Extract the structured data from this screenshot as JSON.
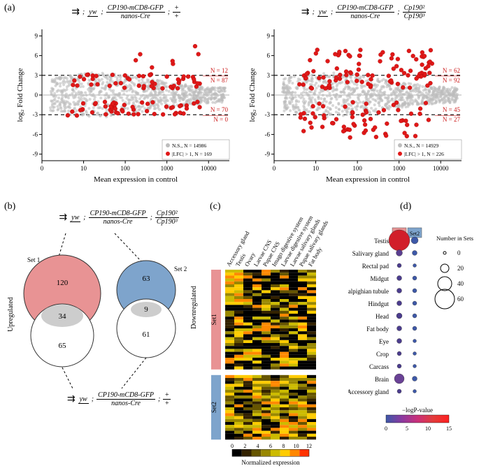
{
  "panel_a": {
    "label": "(a)",
    "left": {
      "genotype": {
        "l1": "yw",
        "l2": "",
        "m1": "CP190-mCD8-GFP",
        "m2": "nanos-Cre",
        "r1": "+",
        "r2": "+"
      },
      "xlabel": "Mean expression in control",
      "ylabel": "log₂ Fold Change",
      "xticks": [
        "0",
        "10",
        "100",
        "1000",
        "10000"
      ],
      "yticks": [
        "-9",
        "-6",
        "-3",
        "0",
        "3",
        "6",
        "9"
      ],
      "ylim": [
        -10,
        10
      ],
      "dash_lines": [
        3,
        -3
      ],
      "counts": {
        "top_above": "N = 12",
        "top_below": "N = 87",
        "bot_above": "N = 70",
        "bot_below": "N = 0"
      },
      "legend": {
        "ns": "N.S., N = 14986",
        "sig": "|LFC| > 1, N = 169"
      },
      "colors": {
        "ns": "#bdbdbd",
        "sig": "#e01818",
        "text_red": "#cc1a1a",
        "axis": "#000"
      }
    },
    "right": {
      "genotype": {
        "l1": "yw",
        "l2": "",
        "m1": "CP190-mCD8-GFP",
        "m2": "nanos-Cre",
        "r1": "Cp190²",
        "r2": "Cp190³"
      },
      "xlabel": "Mean expression in control",
      "ylabel": "log₂ Fold Change",
      "xticks": [
        "0",
        "10",
        "100",
        "1000",
        "10000"
      ],
      "yticks": [
        "-9",
        "-6",
        "-3",
        "0",
        "3",
        "6",
        "9"
      ],
      "ylim": [
        -10,
        10
      ],
      "dash_lines": [
        3,
        -3
      ],
      "counts": {
        "top_above": "N = 62",
        "top_below": "N = 92",
        "bot_above": "N = 45",
        "bot_below": "N = 27"
      },
      "legend": {
        "ns": "N.S., N = 14929",
        "sig": "|LFC| > 1, N = 226"
      },
      "colors": {
        "ns": "#bdbdbd",
        "sig": "#e01818",
        "text_red": "#cc1a1a",
        "axis": "#000"
      }
    }
  },
  "panel_b": {
    "label": "(b)",
    "top_geno": {
      "l1": "yw",
      "m1": "CP190-mCD8-GFP",
      "m2": "nanos-Cre",
      "r1": "Cp190²",
      "r2": "Cp190³"
    },
    "bot_geno": {
      "l1": "yw",
      "m1": "CP190-mCD8-GFP",
      "m2": "nanos-Cre",
      "r1": "+",
      "r2": "+"
    },
    "left_label": "Upregulated",
    "right_label": "Downregulated",
    "set1_label": "Set 1",
    "set2_label": "Set 2",
    "nums": {
      "set1_only": "120",
      "left_overlap": "34",
      "left_bottom": "65",
      "set2_only": "63",
      "right_overlap": "9",
      "right_bottom": "61"
    },
    "colors": {
      "set1": "#e89394",
      "set2": "#7ea4cc",
      "overlap": "#c8c8c8",
      "other": "#ffffff",
      "stroke": "#333"
    }
  },
  "panel_c": {
    "label": "(c)",
    "col_labels": [
      "Accessory gland",
      "Testis",
      "Ovary",
      "Larvae CNS",
      "Pupae CNS",
      "Imago digestive system",
      "Larvae digestive system",
      "Larvae salivary glands",
      "Pupae salivary glands",
      "Fat body"
    ],
    "row_groups": [
      {
        "name": "Set1",
        "color": "#e89394"
      },
      {
        "name": "Set2",
        "color": "#7ea4cc"
      }
    ],
    "colorbar_label": "Normalized expression",
    "colorbar_ticks": [
      "0",
      "2",
      "4",
      "6",
      "8",
      "10",
      "12"
    ],
    "colorbar_colors": [
      "#000000",
      "#332200",
      "#665500",
      "#998800",
      "#ccbb00",
      "#ffcc00",
      "#ff8800",
      "#ff3300"
    ]
  },
  "panel_d": {
    "label": "(d)",
    "set_cols": [
      {
        "name": "Set1",
        "bg": "#e89394"
      },
      {
        "name": "Set2",
        "bg": "#7ea4cc"
      }
    ],
    "tissues": [
      "Testis",
      "Salivary gland",
      "Rectal pad",
      "Midgut",
      "Malpighian tubule",
      "Hindgut",
      "Head",
      "Fat body",
      "Eye",
      "Crop",
      "Carcass",
      "Brain",
      "Accessory gland"
    ],
    "sizes_set1": [
      60,
      18,
      12,
      14,
      14,
      14,
      16,
      14,
      14,
      12,
      12,
      28,
      12
    ],
    "sizes_set2": [
      20,
      14,
      10,
      12,
      12,
      12,
      12,
      12,
      10,
      10,
      10,
      14,
      10
    ],
    "colors_set1": [
      "#d11f2a",
      "#5a3e90",
      "#4b3c8e",
      "#4b3c8e",
      "#4b3c8e",
      "#4b3c8e",
      "#4b3c8e",
      "#4b3c8e",
      "#4b3c8e",
      "#4b3c8e",
      "#4b3c8e",
      "#6a4296",
      "#4b3c8e"
    ],
    "colors_set2": [
      "#3d58a8",
      "#3d58a8",
      "#3d58a8",
      "#3d58a8",
      "#3d58a8",
      "#3d58a8",
      "#3d58a8",
      "#3d58a8",
      "#3d58a8",
      "#3d58a8",
      "#3d58a8",
      "#3d58a8",
      "#3d58a8"
    ],
    "size_legend": {
      "title": "Number in Sets",
      "items": [
        {
          "n": "0",
          "r": 2
        },
        {
          "n": "20",
          "r": 6
        },
        {
          "n": "40",
          "r": 10
        },
        {
          "n": "60",
          "r": 14
        }
      ]
    },
    "color_legend": {
      "title": "−logP-value",
      "ticks": [
        "0",
        "5",
        "10",
        "15"
      ],
      "gradient": [
        "#3d58a8",
        "#8a3aa0",
        "#c9307a",
        "#e23b3b",
        "#ff2020"
      ]
    }
  },
  "scatter_seed": 42
}
